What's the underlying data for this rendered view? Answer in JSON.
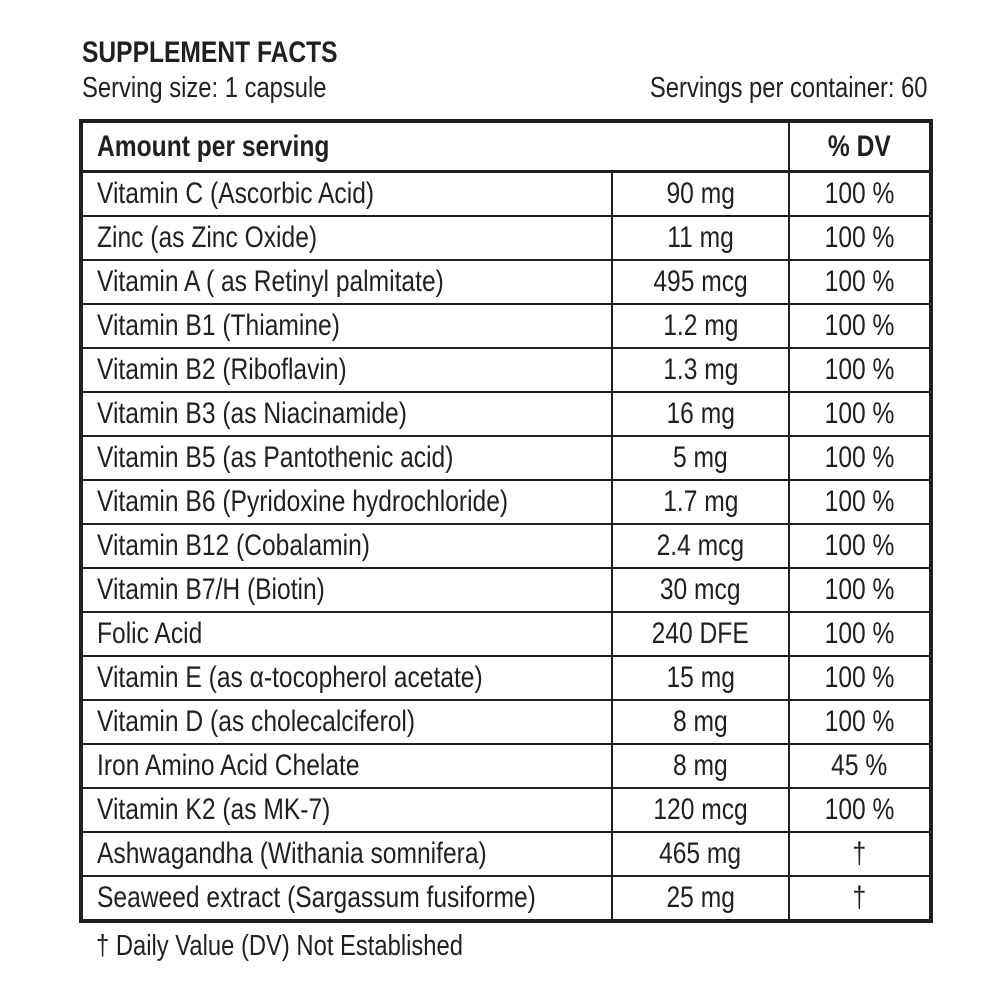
{
  "title": "SUPPLEMENT FACTS",
  "serving_size": "Serving size: 1 capsule",
  "servings_per_container": "Servings per container: 60",
  "table": {
    "header": {
      "amount": "Amount per serving",
      "dv": "% DV"
    },
    "rows": [
      {
        "name": "Vitamin C (Ascorbic Acid)",
        "amount": "90 mg",
        "dv": "100 %"
      },
      {
        "name": "Zinc (as Zinc Oxide)",
        "amount": "11 mg",
        "dv": "100 %"
      },
      {
        "name": "Vitamin A ( as Retinyl palmitate)",
        "amount": "495 mcg",
        "dv": "100 %"
      },
      {
        "name": "Vitamin B1 (Thiamine)",
        "amount": "1.2 mg",
        "dv": "100 %"
      },
      {
        "name": "Vitamin B2 (Riboflavin)",
        "amount": "1.3 mg",
        "dv": "100 %"
      },
      {
        "name": "Vitamin B3 (as Niacinamide)",
        "amount": "16 mg",
        "dv": "100 %"
      },
      {
        "name": "Vitamin B5 (as Pantothenic acid)",
        "amount": "5 mg",
        "dv": "100 %"
      },
      {
        "name": "Vitamin B6 (Pyridoxine hydrochloride)",
        "amount": "1.7 mg",
        "dv": "100 %"
      },
      {
        "name": "Vitamin B12 (Cobalamin)",
        "amount": "2.4 mcg",
        "dv": "100 %"
      },
      {
        "name": "Vitamin B7/H (Biotin)",
        "amount": "30 mcg",
        "dv": "100 %"
      },
      {
        "name": "Folic Acid",
        "amount": "240 DFE",
        "dv": "100 %"
      },
      {
        "name": "Vitamin E (as α-tocopherol acetate)",
        "amount": "15 mg",
        "dv": "100 %"
      },
      {
        "name": "Vitamin D (as cholecalciferol)",
        "amount": "8 mg",
        "dv": "100 %"
      },
      {
        "name": "Iron Amino Acid Chelate",
        "amount": "8 mg",
        "dv": "45 %"
      },
      {
        "name": "Vitamin K2 (as MK-7)",
        "amount": "120 mcg",
        "dv": "100 %"
      },
      {
        "name": "Ashwagandha (Withania somnifera)",
        "amount": "465 mg",
        "dv": "†"
      },
      {
        "name": "Seaweed extract (Sargassum fusiforme)",
        "amount": "25 mg",
        "dv": "†"
      }
    ]
  },
  "footnote": "† Daily Value (DV) Not Established"
}
